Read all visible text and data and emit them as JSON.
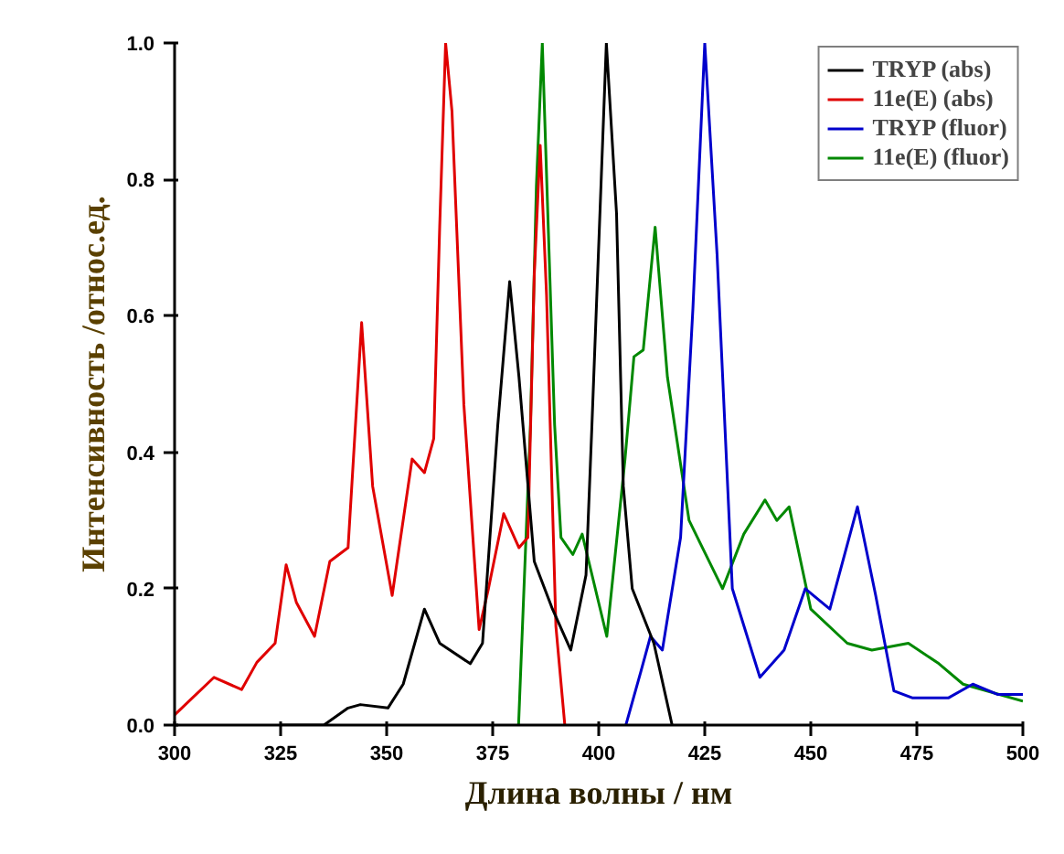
{
  "chart_data": {
    "type": "line",
    "xlabel": "Длина волны / нм",
    "ylabel": "Интенсивность /относ.ед.",
    "xlim": [
      300,
      500
    ],
    "ylim": [
      0,
      1.0
    ],
    "xticks": [
      300,
      325,
      350,
      375,
      400,
      425,
      450,
      475,
      500
    ],
    "yticks": [
      {
        "value": 0,
        "label": "0.0"
      },
      {
        "value": 0.2,
        "label": "0.2"
      },
      {
        "value": 0.4,
        "label": "0.4"
      },
      {
        "value": 0.6,
        "label": "0.6"
      },
      {
        "value": 0.8,
        "label": "0.8"
      },
      {
        "value": 1.0,
        "label": "1.0"
      }
    ],
    "grid": false,
    "legend": "top right",
    "marker": "none",
    "line_style": "solid",
    "series": [
      {
        "name": "TRYP (abs)",
        "color": "#000000",
        "x": [
          325.1,
          335.2,
          340.9,
          343.8,
          350.3,
          353.9,
          358.9,
          362.5,
          369.7,
          372.6,
          376.2,
          379.0,
          381.2,
          384.8,
          389.1,
          393.4,
          397.0,
          398.4,
          401.8,
          404.2,
          405.8,
          407.9,
          413.0,
          417.3
        ],
        "values": [
          0,
          0,
          0.025,
          0.03,
          0.025,
          0.06,
          0.17,
          0.12,
          0.09,
          0.12,
          0.44,
          0.65,
          0.51,
          0.24,
          0.17,
          0.11,
          0.22,
          0.44,
          1.0,
          0.75,
          0.35,
          0.2,
          0.12,
          0
        ]
      },
      {
        "name": "11e(E) (abs)",
        "color": "#e00000",
        "x": [
          300,
          309.3,
          315.8,
          319.4,
          323.7,
          326.3,
          328.7,
          333.0,
          336.6,
          340.9,
          344.1,
          346.7,
          351.3,
          356.0,
          358.9,
          361.1,
          362.5,
          363.9,
          365.4,
          368.2,
          371.8,
          374.0,
          377.6,
          381.2,
          383.3,
          384.8,
          386.2,
          387.7,
          389.9,
          392.0
        ],
        "values": [
          0.015,
          0.07,
          0.052,
          0.092,
          0.12,
          0.235,
          0.18,
          0.13,
          0.24,
          0.26,
          0.59,
          0.35,
          0.19,
          0.39,
          0.37,
          0.42,
          0.73,
          1.0,
          0.9,
          0.47,
          0.14,
          0.2,
          0.31,
          0.26,
          0.275,
          0.66,
          0.85,
          0.63,
          0.145,
          0
        ]
      },
      {
        "name": "TRYP (fluor)",
        "color": "#0000cc",
        "x": [
          406.4,
          410.0,
          412.2,
          415.0,
          419.3,
          422.2,
          425.0,
          427.9,
          431.5,
          438.0,
          443.7,
          448.7,
          454.5,
          461.0,
          465.3,
          469.6,
          473.9,
          482.5,
          488.2,
          494.0,
          500
        ],
        "values": [
          0,
          0.08,
          0.13,
          0.11,
          0.275,
          0.61,
          1.0,
          0.69,
          0.2,
          0.07,
          0.11,
          0.2,
          0.17,
          0.32,
          0.19,
          0.05,
          0.04,
          0.04,
          0.06,
          0.045,
          0.045
        ]
      },
      {
        "name": "11e(E) (fluor)",
        "color": "#008800",
        "x": [
          381.1,
          383.9,
          385.3,
          386.7,
          389.6,
          391.1,
          393.9,
          396.1,
          401.9,
          406.2,
          408.3,
          410.5,
          413.3,
          416.2,
          421.3,
          429.2,
          434.2,
          439.2,
          442.0,
          444.9,
          450.0,
          458.6,
          464.4,
          473.0,
          480.2,
          485.9,
          500
        ],
        "values": [
          0,
          0.44,
          0.79,
          1.0,
          0.44,
          0.275,
          0.25,
          0.28,
          0.13,
          0.39,
          0.54,
          0.55,
          0.73,
          0.51,
          0.3,
          0.2,
          0.28,
          0.33,
          0.3,
          0.32,
          0.17,
          0.12,
          0.11,
          0.12,
          0.09,
          0.06,
          0.035
        ]
      }
    ]
  }
}
